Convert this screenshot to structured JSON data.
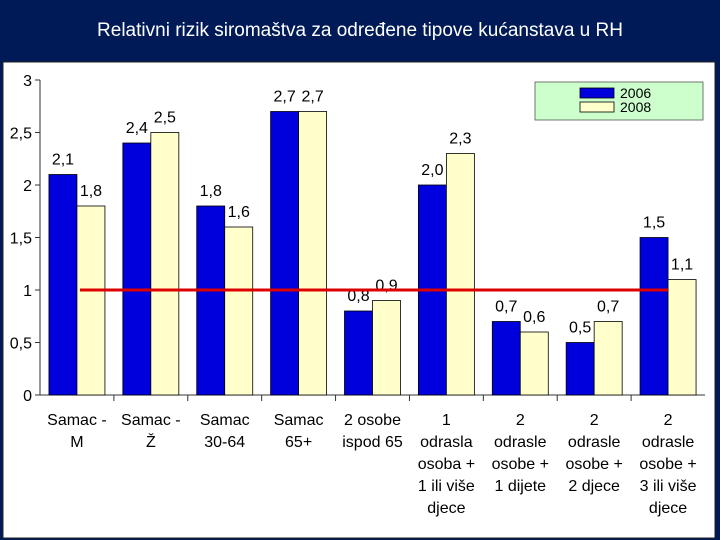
{
  "slide": {
    "title": "Relativni rizik siromaštva za određene tipove kućanstava u RH"
  },
  "chart_data": {
    "type": "bar",
    "title": "",
    "xlabel": "",
    "ylabel": "",
    "ylim": [
      0,
      3
    ],
    "yticks": [
      "0",
      "0,5",
      "1",
      "1,5",
      "2",
      "2,5",
      "3"
    ],
    "categories": [
      [
        "Samac -",
        "M"
      ],
      [
        "Samac -",
        "Ž"
      ],
      [
        "Samac",
        "30-64"
      ],
      [
        "Samac",
        "65+"
      ],
      [
        "2 osobe",
        "ispod 65"
      ],
      [
        "1",
        "odrasla",
        "osoba +",
        "1 ili više",
        "djece"
      ],
      [
        "2",
        "odrasle",
        "osobe +",
        "1 dijete"
      ],
      [
        "2",
        "odrasle",
        "osobe +",
        "2 djece"
      ],
      [
        "2",
        "odrasle",
        "osobe +",
        "3 ili više",
        "djece"
      ]
    ],
    "series": [
      {
        "name": "2006",
        "color": "#0000dd",
        "values": [
          2.1,
          2.4,
          1.8,
          2.7,
          0.8,
          2.0,
          0.7,
          0.5,
          1.5
        ],
        "labels": [
          "2,1",
          "2,4",
          "1,8",
          "2,7",
          "0,8",
          "2,0",
          "0,7",
          "0,5",
          "1,5"
        ]
      },
      {
        "name": "2008",
        "color": "#ffffcc",
        "values": [
          1.8,
          2.5,
          1.6,
          2.7,
          0.9,
          2.3,
          0.6,
          0.7,
          1.1
        ],
        "labels": [
          "1,8",
          "2,5",
          "1,6",
          "2,7",
          "0,9",
          "2,3",
          "0,6",
          "0,7",
          "1,1"
        ]
      }
    ],
    "reference_line": {
      "value": 1,
      "color": "#dd0000"
    },
    "grid": false,
    "legend": "top-right",
    "colors": {
      "plot_bg": "#ffffff",
      "legend_bg": "#ccffcc",
      "page_bg": "#001a57"
    }
  }
}
